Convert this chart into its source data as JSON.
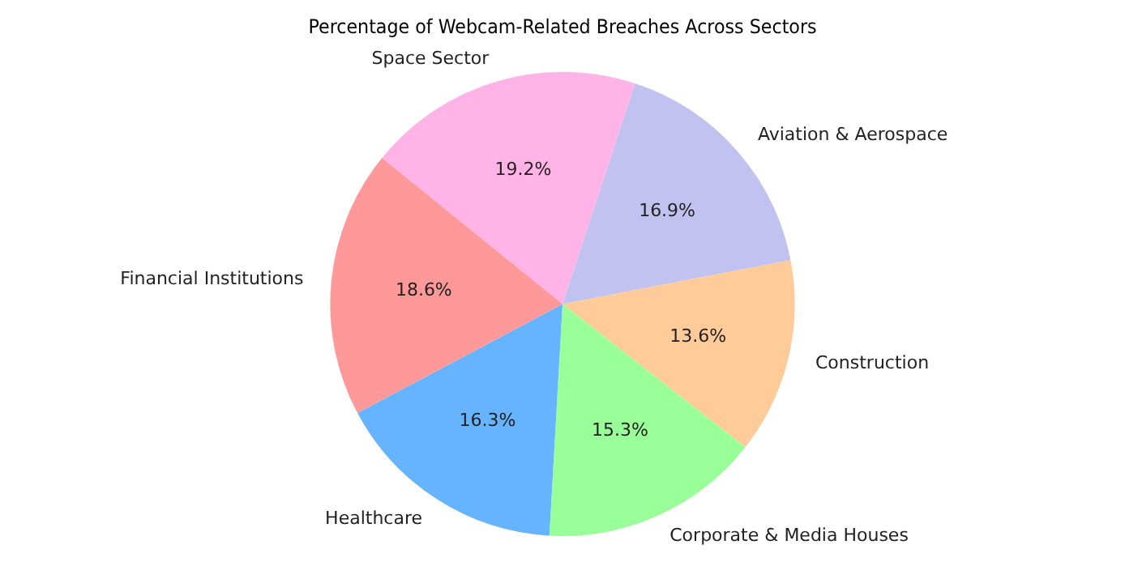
{
  "chart_data": {
    "type": "pie",
    "title": "Percentage of Webcam-Related Breaches Across Sectors",
    "categories": [
      "Space Sector",
      "Aviation & Aerospace",
      "Construction",
      "Corporate & Media Houses",
      "Healthcare",
      "Financial Institutions"
    ],
    "values": [
      19.2,
      16.9,
      13.6,
      15.3,
      16.3,
      18.6
    ],
    "colors": [
      "#ffb3e6",
      "#c2c2f0",
      "#ffcc99",
      "#99ff99",
      "#66b3ff",
      "#ff9999"
    ],
    "value_labels": [
      "19.2%",
      "16.9%",
      "13.6%",
      "15.3%",
      "16.3%",
      "18.6%"
    ],
    "legend": false
  }
}
